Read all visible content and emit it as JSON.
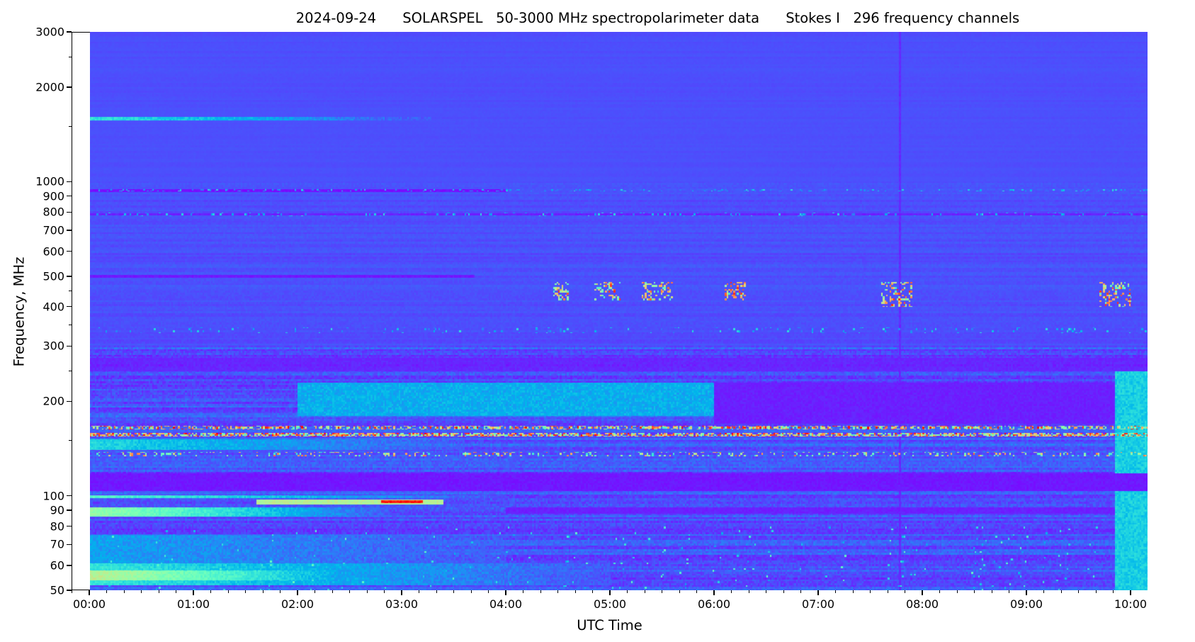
{
  "chart_data": {
    "type": "heatmap",
    "title": "2024-09-24      SOLARSPEL   50-3000 MHz spectropolarimeter data      Stokes I   296 frequency channels",
    "xlabel": "UTC Time",
    "ylabel": "Frequency, MHz",
    "date": "2024-09-24",
    "instrument": "SOLARSPEL",
    "channels": 296,
    "yscale": "log",
    "ylim": [
      50,
      3000
    ],
    "xlim_hours": [
      -0.17,
      10.16
    ],
    "data_start_hours": 0,
    "colormap": "rainbow",
    "background_level": 0.1,
    "x_ticks": [
      {
        "value": 0,
        "label": "00:00"
      },
      {
        "value": 1,
        "label": "01:00"
      },
      {
        "value": 2,
        "label": "02:00"
      },
      {
        "value": 3,
        "label": "03:00"
      },
      {
        "value": 4,
        "label": "04:00"
      },
      {
        "value": 5,
        "label": "05:00"
      },
      {
        "value": 6,
        "label": "06:00"
      },
      {
        "value": 7,
        "label": "07:00"
      },
      {
        "value": 8,
        "label": "08:00"
      },
      {
        "value": 9,
        "label": "09:00"
      },
      {
        "value": 10,
        "label": "10:00"
      }
    ],
    "x_minor_step_hours": 0.1667,
    "y_ticks": [
      {
        "value": 50,
        "label": "50"
      },
      {
        "value": 60,
        "label": "60"
      },
      {
        "value": 70,
        "label": "70"
      },
      {
        "value": 80,
        "label": "80"
      },
      {
        "value": 90,
        "label": "90"
      },
      {
        "value": 100,
        "label": "100"
      },
      {
        "value": 200,
        "label": "200"
      },
      {
        "value": 300,
        "label": "300"
      },
      {
        "value": 400,
        "label": "400"
      },
      {
        "value": 500,
        "label": "500"
      },
      {
        "value": 600,
        "label": "600"
      },
      {
        "value": 700,
        "label": "700"
      },
      {
        "value": 800,
        "label": "800"
      },
      {
        "value": 900,
        "label": "900"
      },
      {
        "value": 1000,
        "label": "1000"
      },
      {
        "value": 2000,
        "label": "2000"
      },
      {
        "value": 3000,
        "label": "3000"
      }
    ],
    "y_minor_ticks": [
      150,
      250,
      350,
      450,
      1500,
      2500
    ],
    "features": [
      {
        "kind": "bright",
        "f": [
          1575,
          1615
        ],
        "t": [
          0,
          3.3
        ],
        "level": 0.36,
        "fade": true
      },
      {
        "kind": "bright",
        "f": [
          140,
          152
        ],
        "t": [
          0,
          3.6
        ],
        "level": 0.32,
        "fade": true
      },
      {
        "kind": "bright",
        "f": [
          180,
          230
        ],
        "t": [
          2,
          6
        ],
        "level": 0.24,
        "fade": false
      },
      {
        "kind": "bright",
        "f": [
          98.5,
          100.5
        ],
        "t": [
          0,
          4
        ],
        "level": 0.42,
        "fade": true
      },
      {
        "kind": "bright",
        "f": [
          94,
          97.5
        ],
        "t": [
          1.6,
          3.4
        ],
        "level": 0.6,
        "fade": false
      },
      {
        "kind": "bright",
        "f": [
          95,
          97
        ],
        "t": [
          2.8,
          3.2
        ],
        "level": 0.97,
        "fade": false
      },
      {
        "kind": "bright",
        "f": [
          86,
          92
        ],
        "t": [
          0,
          2.9
        ],
        "level": 0.55,
        "fade": true
      },
      {
        "kind": "bright",
        "f": [
          60,
          75
        ],
        "t": [
          0,
          4
        ],
        "level": 0.22,
        "fade": true
      },
      {
        "kind": "bright",
        "f": [
          52,
          61
        ],
        "t": [
          0,
          5
        ],
        "level": 0.36,
        "fade": true
      },
      {
        "kind": "bright",
        "f": [
          54,
          58
        ],
        "t": [
          0,
          3.2
        ],
        "level": 0.62,
        "fade": true
      },
      {
        "kind": "bright",
        "f": [
          50,
          250
        ],
        "t": [
          9.85,
          10.2
        ],
        "level": 0.3,
        "fade": false
      },
      {
        "kind": "dark",
        "f": [
          930,
          950
        ],
        "t": [
          0,
          4
        ],
        "level": 0.02
      },
      {
        "kind": "dark",
        "f": [
          785,
          795
        ],
        "t": [
          0,
          10.2
        ],
        "level": 0.04
      },
      {
        "kind": "dark",
        "f": [
          495,
          505
        ],
        "t": [
          0,
          3.7
        ],
        "level": 0.03
      },
      {
        "kind": "dark",
        "f": [
          250,
          275
        ],
        "t": [
          0,
          10.2
        ],
        "level": 0.05
      },
      {
        "kind": "dark",
        "f": [
          104,
          118
        ],
        "t": [
          0,
          10.2
        ],
        "level": 0.03
      },
      {
        "kind": "dark",
        "f": [
          170,
          230
        ],
        "t": [
          6,
          9.85
        ],
        "level": 0.04
      },
      {
        "kind": "dark",
        "f": [
          88,
          92
        ],
        "t": [
          4,
          9.85
        ],
        "level": 0.04
      },
      {
        "kind": "dark",
        "f": [
          50,
          3000
        ],
        "t": [
          7.77,
          7.79
        ],
        "level": 0.05
      },
      {
        "kind": "spikes",
        "f": [
          163,
          167
        ],
        "t": [
          0,
          10.2
        ],
        "level": 1.0,
        "density": 0.5
      },
      {
        "kind": "spikes",
        "f": [
          155,
          159
        ],
        "t": [
          0,
          10.2
        ],
        "level": 1.0,
        "density": 0.7
      },
      {
        "kind": "spikes",
        "f": [
          134,
          138
        ],
        "t": [
          0,
          10.2
        ],
        "level": 0.9,
        "density": 0.2
      },
      {
        "kind": "spikes",
        "f": [
          935,
          950
        ],
        "t": [
          0,
          10.2
        ],
        "level": 0.35,
        "density": 0.15
      },
      {
        "kind": "spikes",
        "f": [
          780,
          800
        ],
        "t": [
          0,
          10.2
        ],
        "level": 0.35,
        "density": 0.1
      },
      {
        "kind": "spikes",
        "f": [
          330,
          345
        ],
        "t": [
          0,
          10.2
        ],
        "level": 0.35,
        "density": 0.06
      },
      {
        "kind": "spikes",
        "f": [
          420,
          480
        ],
        "t": [
          4.45,
          4.6
        ],
        "level": 0.95,
        "density": 0.35
      },
      {
        "kind": "spikes",
        "f": [
          420,
          480
        ],
        "t": [
          4.85,
          5.1
        ],
        "level": 0.95,
        "density": 0.3
      },
      {
        "kind": "spikes",
        "f": [
          420,
          480
        ],
        "t": [
          5.3,
          5.6
        ],
        "level": 0.9,
        "density": 0.3
      },
      {
        "kind": "spikes",
        "f": [
          420,
          480
        ],
        "t": [
          6.1,
          6.3
        ],
        "level": 0.95,
        "density": 0.35
      },
      {
        "kind": "spikes",
        "f": [
          400,
          480
        ],
        "t": [
          7.6,
          7.9
        ],
        "level": 0.95,
        "density": 0.3
      },
      {
        "kind": "spikes",
        "f": [
          400,
          480
        ],
        "t": [
          9.7,
          10.0
        ],
        "level": 0.95,
        "density": 0.3
      },
      {
        "kind": "spikes",
        "f": [
          50,
          80
        ],
        "t": [
          0,
          10
        ],
        "level": 0.45,
        "density": 0.012
      }
    ]
  }
}
